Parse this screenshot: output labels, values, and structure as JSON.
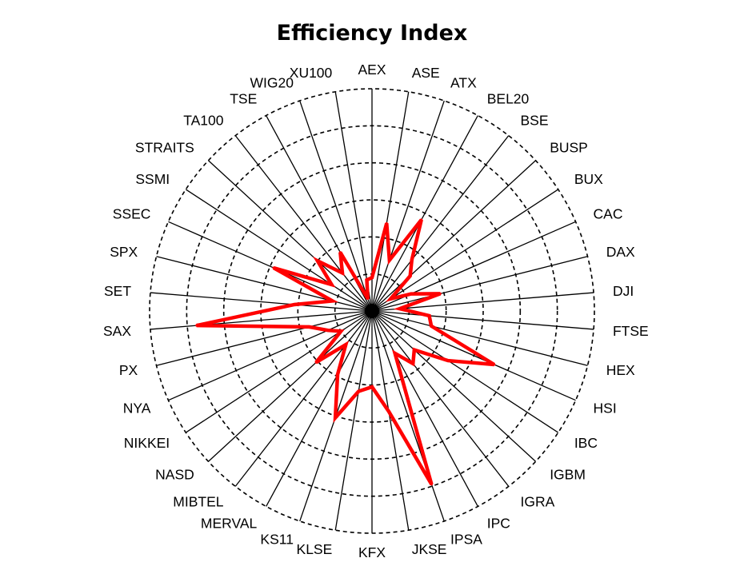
{
  "title": "Efficiency Index",
  "chart_data": {
    "type": "radar",
    "title": "Efficiency Index",
    "categories": [
      "AEX",
      "ASE",
      "ATX",
      "BEL20",
      "BSE",
      "BUSP",
      "BUX",
      "CAC",
      "DAX",
      "DJI",
      "FTSE",
      "HEX",
      "HSI",
      "IBC",
      "IGBM",
      "IGRA",
      "IPC",
      "IPSA",
      "JKSE",
      "KFX",
      "KLSE",
      "KS11",
      "MERVAL",
      "MIBTEL",
      "NASD",
      "NIKKEI",
      "NYA",
      "PX",
      "SAX",
      "SET",
      "SPX",
      "SSEC",
      "SSMI",
      "STRAITS",
      "TA100",
      "TSE",
      "WIG20",
      "XU100"
    ],
    "series": [
      {
        "color": "#ff0000",
        "values": [
          0.18,
          0.48,
          0.29,
          0.56,
          0.35,
          0.28,
          0.12,
          0.23,
          0.38,
          0.15,
          0.31,
          0.33,
          0.72,
          0.49,
          0.31,
          0.36,
          0.26,
          0.99,
          0.55,
          0.41,
          0.44,
          0.61,
          0.39,
          0.23,
          0.41,
          0.2,
          0.26,
          0.35,
          0.95,
          0.42,
          0.22,
          0.58,
          0.26,
          0.4,
          0.26,
          0.36,
          0.07,
          0.17
        ]
      }
    ],
    "rlim": [
      0,
      1.2
    ],
    "rings": [
      0.2,
      0.4,
      0.6,
      0.8,
      1.0,
      1.2
    ],
    "grid": true
  }
}
